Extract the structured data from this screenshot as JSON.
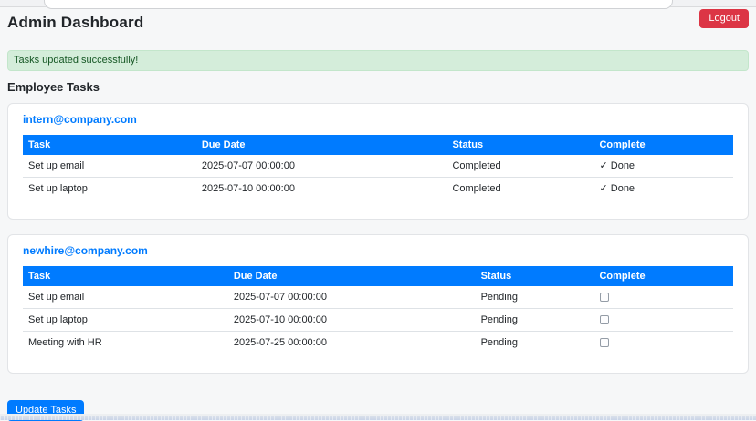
{
  "window": {
    "title": "Admin Dashboard",
    "logout_label": "Logout"
  },
  "alert": {
    "message": "Tasks updated successfully!"
  },
  "section": {
    "title": "Employee Tasks"
  },
  "columns": [
    "Task",
    "Due Date",
    "Status",
    "Complete"
  ],
  "employees": [
    {
      "email": "intern@company.com",
      "tasks": [
        {
          "name": "Set up email",
          "due": "2025-07-07 00:00:00",
          "status": "Completed",
          "complete_label": "✓ Done"
        },
        {
          "name": "Set up laptop",
          "due": "2025-07-10 00:00:00",
          "status": "Completed",
          "complete_label": "✓ Done"
        }
      ]
    },
    {
      "email": "newhire@company.com",
      "tasks": [
        {
          "name": "Set up email",
          "due": "2025-07-07 00:00:00",
          "status": "Pending",
          "checked": false
        },
        {
          "name": "Set up laptop",
          "due": "2025-07-10 00:00:00",
          "status": "Pending",
          "checked": false
        },
        {
          "name": "Meeting with HR",
          "due": "2025-07-25 00:00:00",
          "status": "Pending",
          "checked": false
        }
      ]
    }
  ],
  "actions": {
    "update_tasks_label": "Update Tasks"
  },
  "colors": {
    "primary": "#007bff",
    "danger": "#dc3545",
    "success_bg": "#d4edda",
    "success_text": "#155724"
  }
}
